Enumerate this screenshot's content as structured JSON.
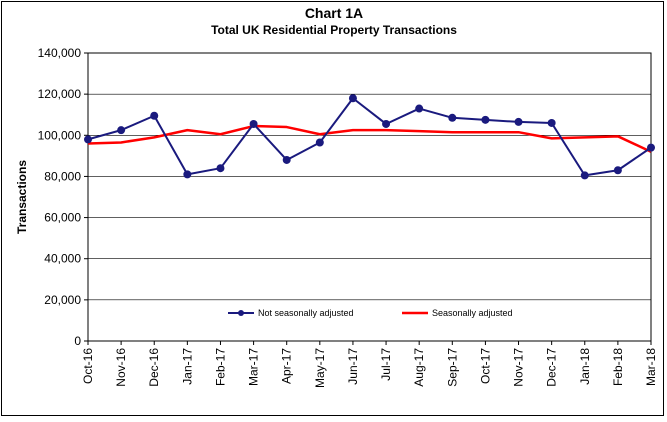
{
  "chart_data": {
    "type": "line",
    "title": "Chart 1A",
    "subtitle": "Total UK Residential Property Transactions",
    "xlabel": "",
    "ylabel": "Transactions",
    "ylim": [
      0,
      140000
    ],
    "yticks": [
      "0",
      "20,000",
      "40,000",
      "60,000",
      "80,000",
      "100,000",
      "120,000",
      "140,000"
    ],
    "categories": [
      "Oct-16",
      "Nov-16",
      "Dec-16",
      "Jan-17",
      "Feb-17",
      "Mar-17",
      "Apr-17",
      "May-17",
      "Jun-17",
      "Jul-17",
      "Aug-17",
      "Sep-17",
      "Oct-17",
      "Nov-17",
      "Dec-17",
      "Jan-18",
      "Feb-18",
      "Mar-18"
    ],
    "grid": "horizontal",
    "legend_position": "bottom-center",
    "series": [
      {
        "name": "Not seasonally adjusted",
        "color": "#1a1a7e",
        "marker": "circle",
        "values": [
          98000,
          102500,
          109500,
          81000,
          84000,
          105500,
          88000,
          96500,
          118000,
          105500,
          113000,
          108500,
          107500,
          106500,
          106000,
          80500,
          83000,
          94000
        ]
      },
      {
        "name": "Seasonally adjusted",
        "color": "#ff0000",
        "marker": "none",
        "values": [
          96000,
          96500,
          99000,
          102500,
          100500,
          104500,
          104000,
          100500,
          102500,
          102500,
          102000,
          101500,
          101500,
          101500,
          98500,
          99000,
          99500,
          92000
        ]
      }
    ]
  }
}
